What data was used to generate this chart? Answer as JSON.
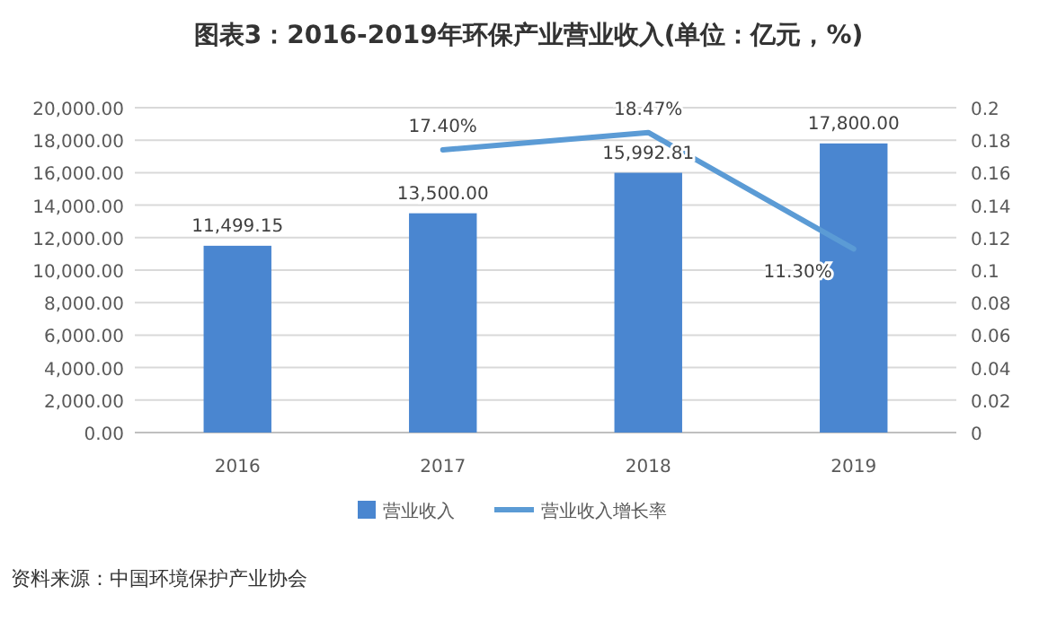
{
  "chart_data": {
    "type": "bar",
    "title": "图表3：2016-2019年环保产业营业收入(单位：亿元，%)",
    "categories": [
      "2016",
      "2017",
      "2018",
      "2019"
    ],
    "series": [
      {
        "name": "营业收入",
        "color": "#4a86d0",
        "values": [
          11499.15,
          13500,
          15992.81,
          17800
        ],
        "value_labels": [
          "11,499.15",
          "13,500.00",
          "15,992.81",
          "17,800.00"
        ]
      },
      {
        "name": "营业收入增长率",
        "type": "line",
        "axis": "y2",
        "color": "#5b9bd5",
        "values": [
          null,
          0.174,
          0.1847,
          0.113
        ],
        "value_labels": [
          null,
          "17.40%",
          "18.47%",
          "11.30%"
        ]
      }
    ],
    "ylim": [
      0,
      20000
    ],
    "yticks": [
      {
        "value": 0,
        "label": "0.00"
      },
      {
        "value": 2000,
        "label": "2,000.00"
      },
      {
        "value": 4000,
        "label": "4,000.00"
      },
      {
        "value": 6000,
        "label": "6,000.00"
      },
      {
        "value": 8000,
        "label": "8,000.00"
      },
      {
        "value": 10000,
        "label": "10,000.00"
      },
      {
        "value": 12000,
        "label": "12,000.00"
      },
      {
        "value": 14000,
        "label": "14,000.00"
      },
      {
        "value": 16000,
        "label": "16,000.00"
      },
      {
        "value": 18000,
        "label": "18,000.00"
      },
      {
        "value": 20000,
        "label": "20,000.00"
      }
    ],
    "y2lim": [
      0,
      0.2
    ],
    "y2ticks": [
      0,
      0.02,
      0.04,
      0.06,
      0.08,
      0.1,
      0.12,
      0.14,
      0.16,
      0.18,
      0.2
    ],
    "grid": "y",
    "legend": "bottom",
    "marker": "none",
    "annotations": [
      "资料来源：中国环境保护产业协会"
    ]
  }
}
